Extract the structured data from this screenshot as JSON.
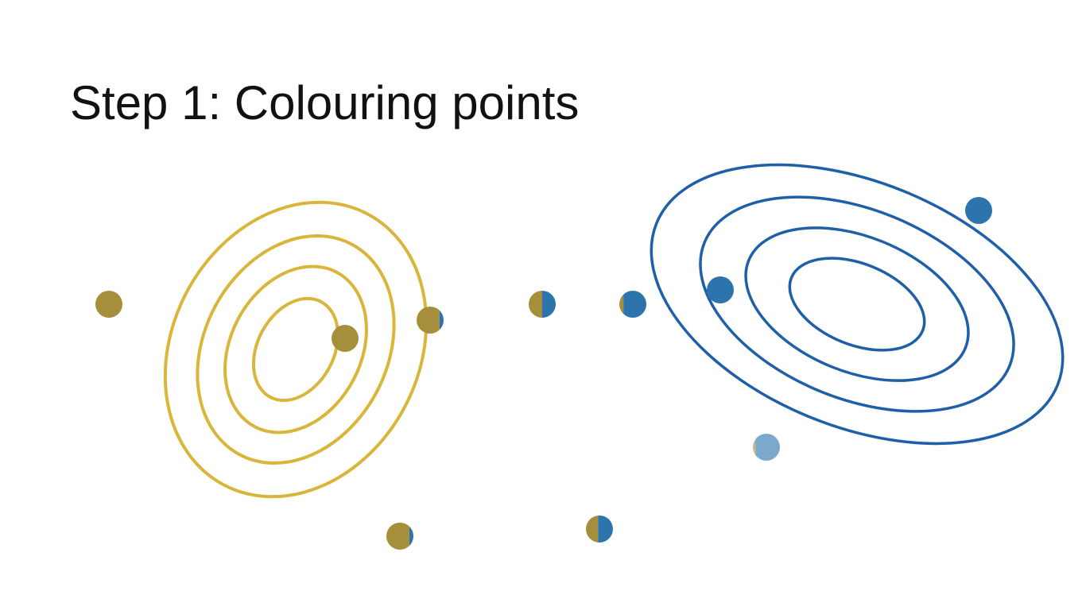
{
  "slide": {
    "title": "Step 1: Colouring points"
  },
  "colors": {
    "background": "#ffffff",
    "cluster_a": "#d9b53a",
    "cluster_a_point": "#a58f3a",
    "cluster_b": "#1f5fa8",
    "cluster_b_point": "#2d74ad"
  },
  "clusters": [
    {
      "id": "cluster-a",
      "color_key": "cluster_a",
      "ring_count": 4
    },
    {
      "id": "cluster-b",
      "color_key": "cluster_b",
      "ring_count": 4
    }
  ],
  "points": [
    {
      "id": "p1",
      "share_a": 1.0
    },
    {
      "id": "p2",
      "share_a": 1.0
    },
    {
      "id": "p3",
      "share_a": 0.85
    },
    {
      "id": "p4",
      "share_a": 0.5
    },
    {
      "id": "p5",
      "share_a": 0.15
    },
    {
      "id": "p6",
      "share_a": 0.0
    },
    {
      "id": "p7",
      "share_a": 0.0
    },
    {
      "id": "p8",
      "share_a": 0.1
    },
    {
      "id": "p9",
      "share_a": 0.85
    },
    {
      "id": "p10",
      "share_a": 0.45
    }
  ]
}
